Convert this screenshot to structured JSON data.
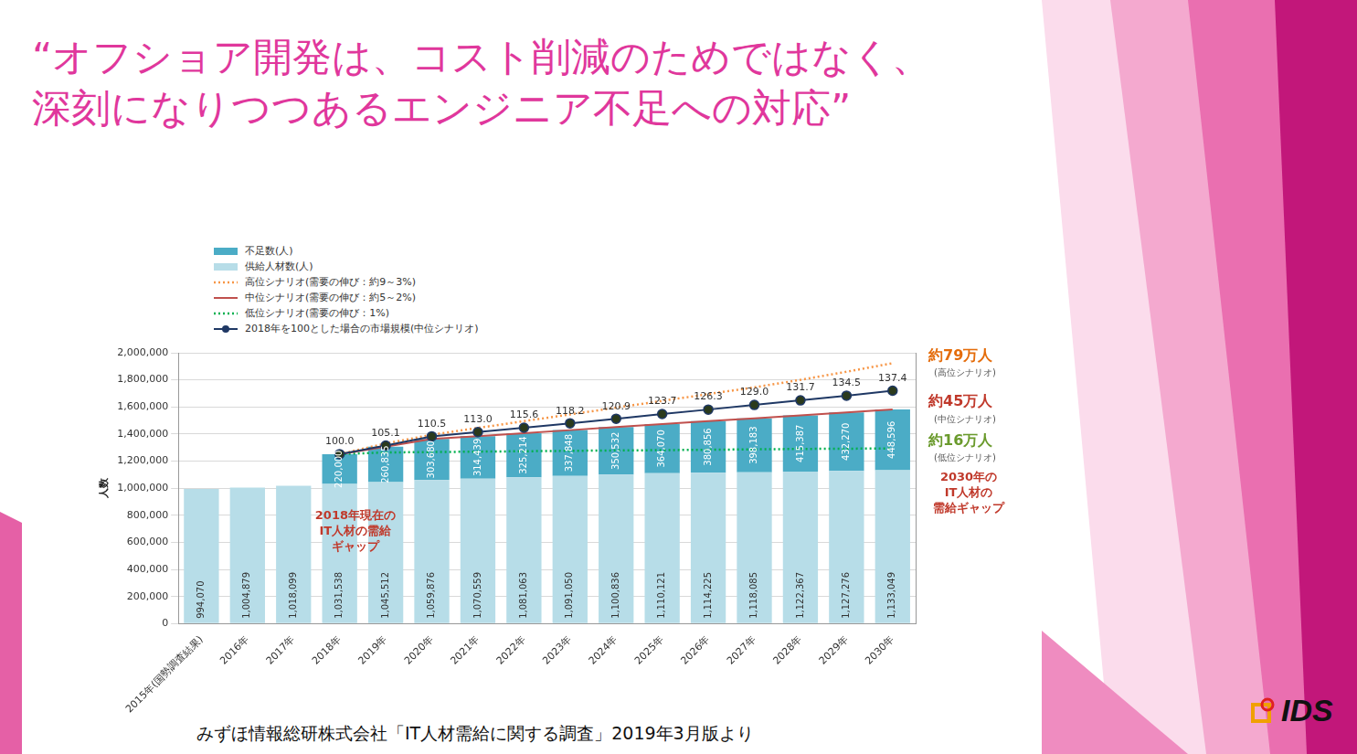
{
  "slide": {
    "title_lines": [
      "“オフショア開発は、コスト削減のためではなく、",
      "深刻になりつつあるエンジニア不足への対応”"
    ],
    "source": "みずほ情報総研株式会社「IT人材需給に関する調査」2019年3月版より",
    "logo": "IDS"
  },
  "chart_data": {
    "type": "bar",
    "stacked": true,
    "grid": true,
    "legend": "top-left",
    "y_label": "人数",
    "categories": [
      "2015年(国勢調査結果)",
      "2016年",
      "2017年",
      "2018年",
      "2019年",
      "2020年",
      "2021年",
      "2022年",
      "2023年",
      "2024年",
      "2025年",
      "2026年",
      "2027年",
      "2028年",
      "2029年",
      "2030年"
    ],
    "ylim": [
      0,
      2000000
    ],
    "yticks": [
      0,
      {
        "value": 200000,
        "label": "200,000"
      },
      {
        "value": 400000,
        "label": "400,000"
      },
      {
        "value": 600000,
        "label": "600,000"
      },
      {
        "value": 800000,
        "label": "800,000"
      },
      {
        "value": 1000000,
        "label": "1,000,000"
      },
      {
        "value": 1200000,
        "label": "1,200,000"
      },
      {
        "value": 1400000,
        "label": "1,400,000"
      },
      {
        "value": 1600000,
        "label": "1,600,000"
      },
      {
        "value": 1800000,
        "label": "1,800,000"
      },
      {
        "value": 2000000,
        "label": "2,000,000"
      }
    ],
    "y2lim": [
      0,
      159.8
    ],
    "y2ticks": [],
    "series": [
      {
        "name": "不足数(人)",
        "type": "bar",
        "color": "#4bacc6",
        "data_labels": true,
        "values": [
          null,
          null,
          null,
          220000,
          260835,
          303680,
          314439,
          325214,
          337848,
          350532,
          364070,
          380856,
          398183,
          415387,
          432270,
          448596
        ],
        "value_labels": [
          null,
          null,
          null,
          "220,000",
          "260,835",
          "303,680",
          "314,439",
          "325,214",
          "337,848",
          "350,532",
          "364,070",
          "380,856",
          "398,183",
          "415,387",
          "432,270",
          "448,596"
        ]
      },
      {
        "name": "供給人材数(人)",
        "type": "bar",
        "color": "#b7dde8",
        "data_labels": true,
        "values": [
          994070,
          1004879,
          1018099,
          1031538,
          1045512,
          1059876,
          1070559,
          1081063,
          1091050,
          1100836,
          1110121,
          1114225,
          1118085,
          1122367,
          1127276,
          1133049
        ],
        "value_labels": [
          "994,070",
          "1,004,879",
          "1,018,099",
          "1,031,538",
          "1,045,512",
          "1,059,876",
          "1,070,559",
          "1,081,063",
          "1,091,050",
          "1,100,836",
          "1,110,121",
          "1,114,225",
          "1,118,085",
          "1,122,367",
          "1,127,276",
          "1,133,049"
        ]
      },
      {
        "name": "高位シナリオ(需要の伸び：約9～3%)",
        "type": "line",
        "color": "#f79646",
        "line_style": "dotted",
        "marker": "none",
        "values": [
          null,
          null,
          null,
          1251538,
          1330000,
          1395000,
          1445000,
          1495000,
          1545000,
          1595000,
          1645000,
          1695000,
          1745000,
          1800000,
          1860000,
          1923000
        ]
      },
      {
        "name": "中位シナリオ(需要の伸び：約5～2%)",
        "type": "line",
        "color": "#c0504d",
        "line_style": "solid",
        "marker": "none",
        "values": [
          null,
          null,
          null,
          1251538,
          1306347,
          1363556,
          1384998,
          1406277,
          1428898,
          1451368,
          1474191,
          1495081,
          1516268,
          1537754,
          1559546,
          1581645
        ]
      },
      {
        "name": "低位シナリオ(需要の伸び：1%)",
        "type": "line",
        "color": "#00b050",
        "line_style": "dotted",
        "marker": "none",
        "values": [
          null,
          null,
          null,
          1251538,
          1264000,
          1267000,
          1270000,
          1273000,
          1276000,
          1279000,
          1281000,
          1284000,
          1287000,
          1290000,
          1292000,
          1293000
        ]
      },
      {
        "name": "2018年を100とした場合の市場規模(中位シナリオ)",
        "type": "line",
        "color": "#1f3864",
        "line_style": "solid",
        "marker": "circle",
        "axis": "y2",
        "data_labels": true,
        "values": [
          null,
          null,
          null,
          100.0,
          105.1,
          110.5,
          113.0,
          115.6,
          118.2,
          120.9,
          123.7,
          126.3,
          129.0,
          131.7,
          134.5,
          137.4
        ],
        "value_labels": [
          null,
          null,
          null,
          "100.0",
          "105.1",
          "110.5",
          "113.0",
          "115.6",
          "118.2",
          "120.9",
          "123.7",
          "126.3",
          "129.0",
          "131.7",
          "134.5",
          "137.4"
        ]
      }
    ],
    "right_labels": [
      {
        "text": "約79万人",
        "sub": "(高位シナリオ)",
        "color": "#e46c0a"
      },
      {
        "text": "約45万人",
        "sub": "(中位シナリオ)",
        "color": "#c0392b"
      },
      {
        "text": "約16万人",
        "sub": "(低位シナリオ)",
        "color": "#6a9a2c"
      }
    ],
    "annotations": [
      {
        "text_lines": [
          "2018年現在の",
          "IT人材の需給",
          "ギャップ"
        ],
        "color": "#c0392b"
      },
      {
        "text_lines": [
          "2030年の",
          "IT人材の",
          "需給ギャップ"
        ],
        "color": "#c0392b"
      }
    ]
  }
}
